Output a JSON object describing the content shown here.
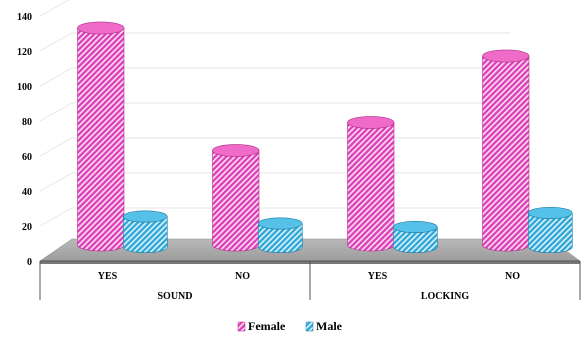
{
  "chart_data": {
    "type": "bar",
    "style": "3d-cylinder",
    "categories": [
      "YES",
      "NO",
      "YES",
      "NO"
    ],
    "groups": [
      {
        "label": "SOUND",
        "categories": [
          "YES",
          "NO"
        ]
      },
      {
        "label": "LOCKING",
        "categories": [
          "YES",
          "NO"
        ]
      }
    ],
    "series": [
      {
        "name": "Female",
        "values": [
          124,
          54,
          70,
          108
        ],
        "color": "#e040b8",
        "pattern": "diagonal-hatch"
      },
      {
        "name": "Male",
        "values": [
          14,
          10,
          8,
          16
        ],
        "color": "#2fa8d8",
        "pattern": "diagonal-hatch"
      }
    ],
    "y_ticks": [
      "0",
      "20",
      "40",
      "60",
      "80",
      "100",
      "120",
      "140"
    ],
    "ylim": [
      0,
      140
    ],
    "grid": true,
    "floor_color": "#a8a8a8",
    "legend_position": "bottom-center"
  }
}
